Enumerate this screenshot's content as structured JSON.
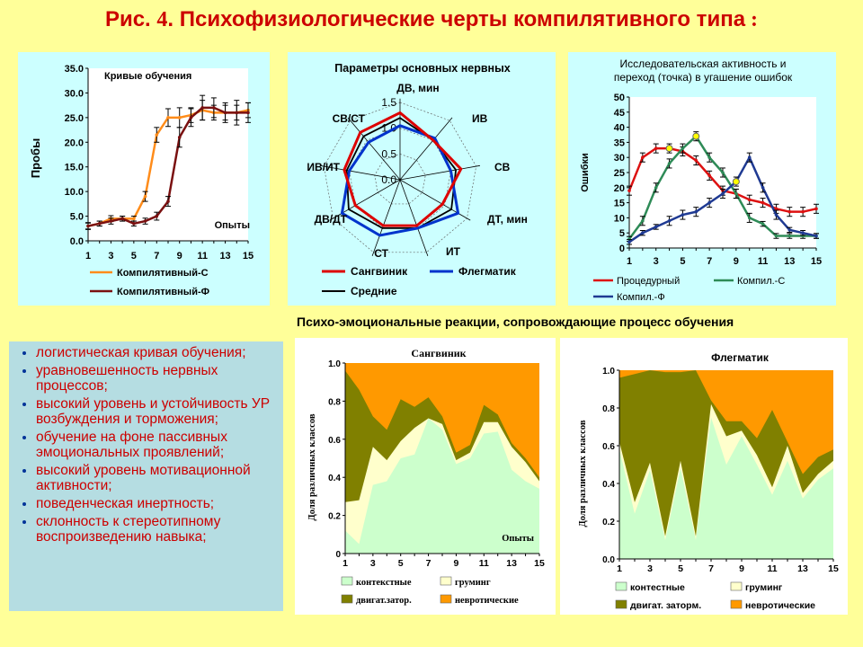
{
  "title_prefix": "Рис. ",
  "title_num": "4",
  "title_rest": ". Психофизиологические черты компилятивного типа",
  "title_colon": " :",
  "emotional_header": "Психо-эмоциональные реакции, сопровождающие процесс обучения",
  "traits": [
    "логистическая кривая обучения;",
    "уравновешенность нервных процессов;",
    "высокий уровень  и устойчивость УР возбуждения и торможения;",
    "обучение на фоне пассивных эмоциональных проявлений;",
    "высокий уровень мотивационной активности;",
    "поведенческая инертность;",
    "склонность к стереотипному воспроизведению навыка;"
  ],
  "chart_data": [
    {
      "type": "line",
      "title": "Кривые обучения",
      "xlabel": "Опыты",
      "ylabel": "Пробы",
      "ylim": [
        0,
        35
      ],
      "yticks": [
        "0.0",
        "5.0",
        "10.0",
        "15.0",
        "20.0",
        "25.0",
        "30.0",
        "35.0"
      ],
      "x": [
        1,
        2,
        3,
        4,
        5,
        6,
        7,
        8,
        9,
        10,
        11,
        12,
        13,
        14,
        15
      ],
      "xticks": [
        1,
        3,
        5,
        7,
        9,
        11,
        13,
        15
      ],
      "series": [
        {
          "name": "Компилятивный-С",
          "color": "#ff8c1a",
          "values": [
            3,
            3.5,
            4.5,
            4.5,
            4.5,
            9,
            21.5,
            25,
            25,
            25.5,
            26.5,
            26,
            26,
            26,
            26.5
          ]
        },
        {
          "name": "Компилятивный-Ф",
          "color": "#7a1010",
          "values": [
            3,
            3.5,
            4,
            4.5,
            3.5,
            4,
            5,
            8,
            21,
            25,
            27,
            27,
            26,
            26,
            26
          ]
        }
      ]
    },
    {
      "type": "radar",
      "title": "Параметры основных нервных",
      "axes": [
        "ДВ, мин",
        "ИВ",
        "СВ",
        "ДТ, мин",
        "ИТ",
        "СТ",
        "ДВ/ДТ",
        "ИВ/ИТ",
        "СВ/СТ"
      ],
      "rticks": [
        "0.0",
        "0.5",
        "1.0",
        "1.5"
      ],
      "rmax": 1.5,
      "series": [
        {
          "name": "Сангвиник",
          "color": "#dd0000",
          "values": [
            1.3,
            1.0,
            1.2,
            0.95,
            0.95,
            0.95,
            1.0,
            1.1,
            1.2
          ]
        },
        {
          "name": "Флегматик",
          "color": "#0033cc",
          "values": [
            1.05,
            1.05,
            1.0,
            1.3,
            1.0,
            1.15,
            1.3,
            1.0,
            0.95
          ]
        },
        {
          "name": "Средние",
          "color": "#000000",
          "values": [
            1.2,
            1.0,
            1.1,
            1.15,
            1.0,
            1.0,
            1.15,
            1.05,
            1.1
          ]
        }
      ]
    },
    {
      "type": "line",
      "title_line1": "Исследовательская активность и",
      "title_line2": "переход (точка) в угашение ошибок",
      "ylabel": "Ошибки",
      "ylim": [
        0,
        50
      ],
      "yticks": [
        "0",
        "5",
        "10",
        "15",
        "20",
        "25",
        "30",
        "35",
        "40",
        "45",
        "50"
      ],
      "x": [
        1,
        2,
        3,
        4,
        5,
        6,
        7,
        8,
        9,
        10,
        11,
        12,
        13,
        14,
        15
      ],
      "xticks": [
        1,
        3,
        5,
        7,
        9,
        11,
        13,
        15
      ],
      "series": [
        {
          "name": "Процедурный",
          "color": "#dd1111",
          "values": [
            19,
            30,
            33,
            33,
            32,
            29,
            24,
            19,
            18,
            16,
            15,
            13,
            12,
            12,
            13
          ]
        },
        {
          "name": "Компил.-С",
          "color": "#2e8b57",
          "values": [
            3,
            9,
            20,
            28,
            33,
            37,
            30,
            25,
            18,
            10,
            8,
            4,
            4,
            4,
            4
          ]
        },
        {
          "name": "Компил.-Ф",
          "color": "#1f3a93",
          "values": [
            2,
            5,
            7,
            9,
            11,
            12,
            15,
            18,
            22,
            30,
            20,
            11,
            6,
            5,
            4
          ]
        }
      ]
    },
    {
      "type": "area",
      "title": "Сангвиник",
      "xlabel": "Опыты",
      "ylabel": "Доля различных классов",
      "ylim": [
        0,
        1
      ],
      "yticks": [
        "0",
        "0.2",
        "0.4",
        "0.6",
        "0.8",
        "1.0"
      ],
      "x": [
        1,
        2,
        3,
        4,
        5,
        6,
        7,
        8,
        9,
        10,
        11,
        12,
        13,
        14,
        15
      ],
      "xticks": [
        1,
        3,
        5,
        7,
        9,
        11,
        13,
        15
      ],
      "series": [
        {
          "name": "контекстные",
          "color": "#ccffcc",
          "values": [
            0.12,
            0.05,
            0.36,
            0.38,
            0.5,
            0.52,
            0.71,
            0.65,
            0.47,
            0.5,
            0.63,
            0.64,
            0.44,
            0.38,
            0.34
          ]
        },
        {
          "name": "груминг",
          "color": "#ffffcc",
          "values": [
            0.27,
            0.28,
            0.56,
            0.49,
            0.59,
            0.66,
            0.71,
            0.68,
            0.49,
            0.53,
            0.69,
            0.69,
            0.56,
            0.48,
            0.38
          ]
        },
        {
          "name": "двигат.затор.",
          "color": "#808000",
          "values": [
            0.96,
            0.86,
            0.72,
            0.65,
            0.81,
            0.77,
            0.82,
            0.72,
            0.53,
            0.57,
            0.78,
            0.73,
            0.58,
            0.5,
            0.4
          ]
        },
        {
          "name": "невротические",
          "color": "#ff9900",
          "values": [
            1,
            1,
            1,
            1,
            1,
            1,
            1,
            1,
            1,
            1,
            1,
            1,
            1,
            1,
            1
          ]
        }
      ]
    },
    {
      "type": "area",
      "title": "Флегматик",
      "ylabel": "Доля различных классов",
      "ylim": [
        0,
        1
      ],
      "yticks": [
        "0.0",
        "0.2",
        "0.4",
        "0.6",
        "0.8",
        "1.0"
      ],
      "x": [
        1,
        2,
        3,
        4,
        5,
        6,
        7,
        8,
        9,
        10,
        11,
        12,
        13,
        14,
        15
      ],
      "xticks": [
        1,
        3,
        5,
        7,
        9,
        11,
        13,
        15
      ],
      "series": [
        {
          "name": "контестные",
          "color": "#ccffcc",
          "values": [
            0.58,
            0.24,
            0.47,
            0.1,
            0.48,
            0.1,
            0.75,
            0.5,
            0.65,
            0.5,
            0.34,
            0.52,
            0.32,
            0.42,
            0.48
          ]
        },
        {
          "name": "груминг",
          "color": "#ffffcc",
          "values": [
            0.62,
            0.3,
            0.51,
            0.12,
            0.52,
            0.12,
            0.82,
            0.65,
            0.68,
            0.55,
            0.38,
            0.6,
            0.35,
            0.45,
            0.52
          ]
        },
        {
          "name": "двигат. заторм.",
          "color": "#808000",
          "values": [
            0.96,
            0.98,
            1,
            0.99,
            0.99,
            1,
            0.84,
            0.73,
            0.73,
            0.64,
            0.79,
            0.62,
            0.45,
            0.54,
            0.58
          ]
        },
        {
          "name": "невротические",
          "color": "#ff9900",
          "values": [
            1,
            1,
            1,
            1,
            1,
            1,
            1,
            1,
            1,
            1,
            1,
            1,
            1,
            1,
            1
          ]
        }
      ]
    }
  ]
}
